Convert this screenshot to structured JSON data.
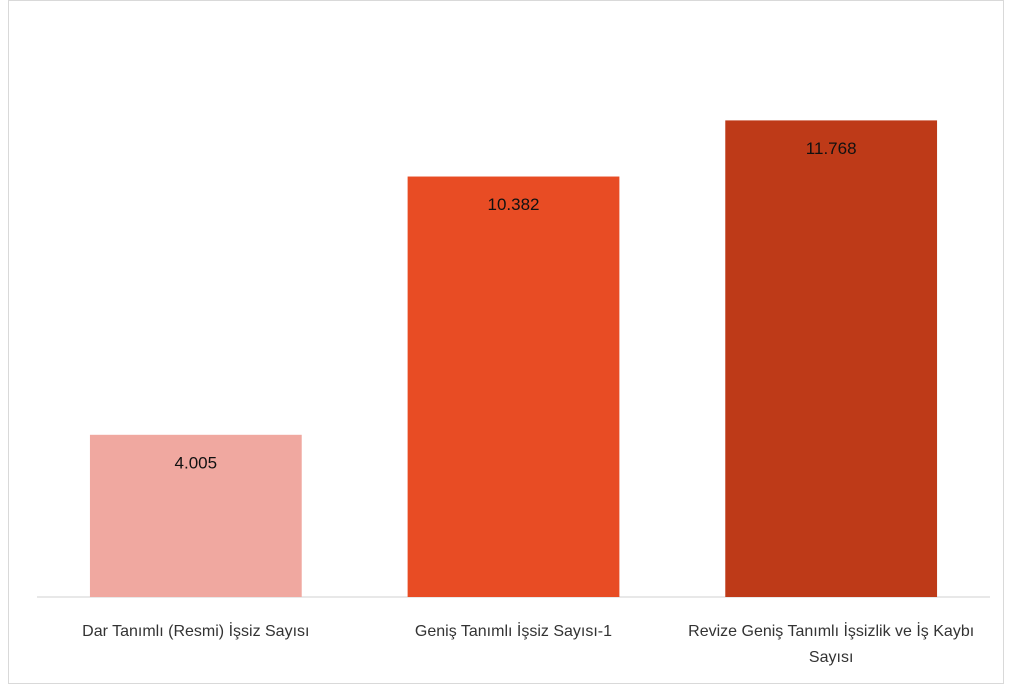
{
  "chart_data": {
    "type": "bar",
    "categories": [
      "Dar Tanımlı (Resmi) İşsiz Sayısı",
      "Geniş Tanımlı İşsiz Sayısı-1",
      "Revize Geniş Tanımlı İşsizlik ve İş Kaybı Sayısı"
    ],
    "values": [
      4005,
      10382,
      11768
    ],
    "value_labels": [
      "4.005",
      "10.382",
      "11.768"
    ],
    "colors": [
      "#f0a8a0",
      "#e84c24",
      "#be3a18"
    ],
    "ylim": [
      0,
      14000
    ]
  }
}
